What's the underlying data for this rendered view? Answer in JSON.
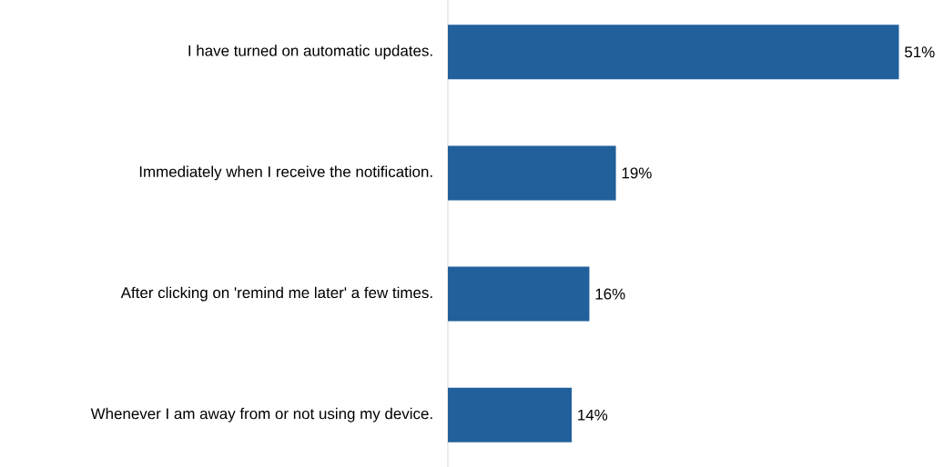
{
  "chart_data": {
    "type": "bar",
    "orientation": "horizontal",
    "categories": [
      "I have turned on automatic updates.",
      "Immediately when I receive the notification.",
      "After clicking on 'remind me later' a few times.",
      "Whenever I am away from or not using my device."
    ],
    "values": [
      51,
      19,
      16,
      14
    ],
    "value_labels": [
      "51%",
      "19%",
      "16%",
      "14%"
    ],
    "color": "#21609b"
  }
}
